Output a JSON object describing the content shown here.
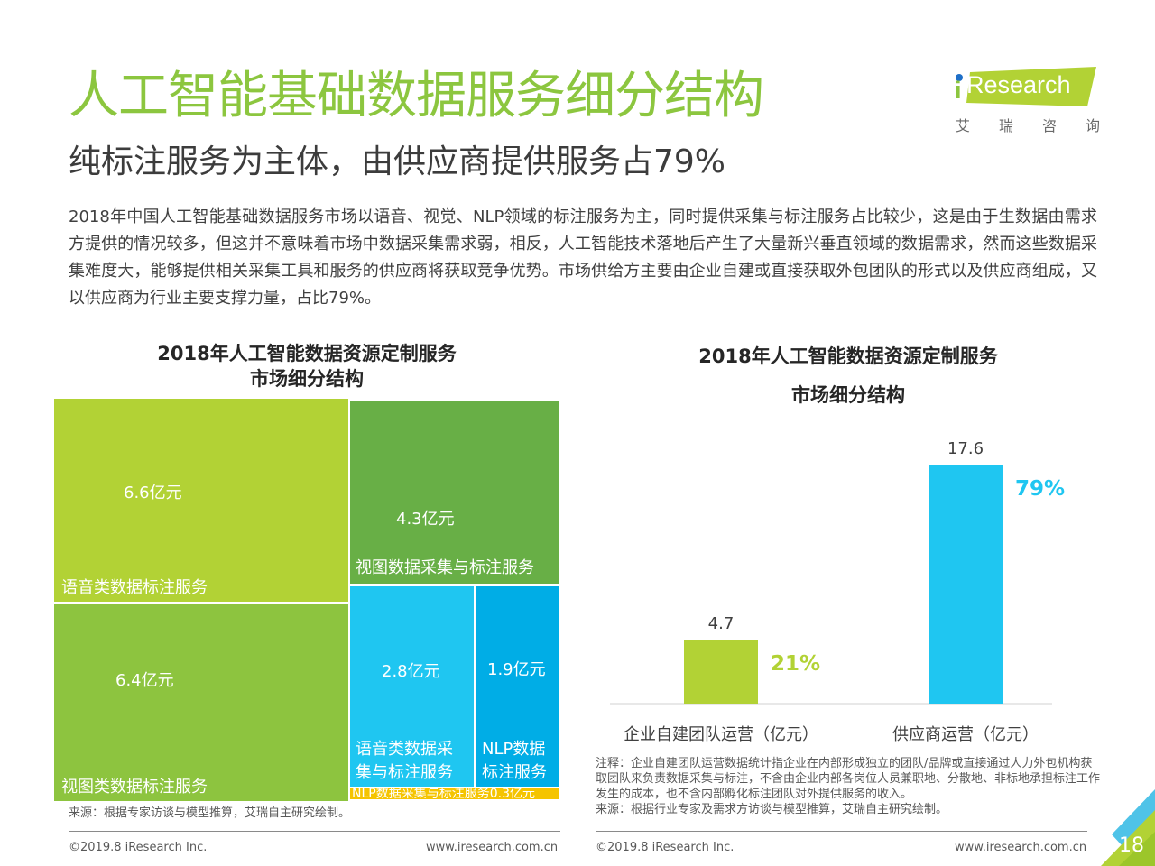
{
  "header": {
    "title": "人工智能基础数据服务细分结构",
    "subtitle": "纯标注服务为主体，由供应商提供服务占79%"
  },
  "logo": {
    "brand": "Research",
    "brand_prefix": "i",
    "cn_chars": [
      "艾",
      "瑞",
      "咨",
      "询"
    ]
  },
  "intro": "2018年中国人工智能基础数据服务市场以语音、视觉、NLP领域的标注服务为主，同时提供采集与标注服务占比较少，这是由于生数据由需求方提供的情况较多，但这并不意味着市场中数据采集需求弱，相反，人工智能技术落地后产生了大量新兴垂直领域的数据需求，然而这些数据采集难度大，能够提供相关采集工具和服务的供应商将获取竞争优势。市场供给方主要由企业自建或直接获取外包团队的形式以及供应商组成，又以供应商为行业主要支撑力量，占比79%。",
  "colors": {
    "brand_green": "#8cc63f",
    "lime": "#b2d235",
    "green_dark": "#68af46",
    "green_mid": "#8dc43f",
    "cyan": "#1fc6f1",
    "blue": "#00ade6",
    "yellow": "#f5c400"
  },
  "chart_data": [
    {
      "type": "treemap",
      "title_line1": "2018年人工智能数据资源定制服务",
      "title_line2": "市场细分结构",
      "unit": "亿元",
      "items": [
        {
          "name": "语音类数据标注服务",
          "value": 6.6,
          "value_label": "6.6亿元",
          "color": "#b2d235"
        },
        {
          "name": "视图类数据标注服务",
          "value": 6.4,
          "value_label": "6.4亿元",
          "color": "#8dc43f"
        },
        {
          "name": "视图数据采集与标注服务",
          "value": 4.3,
          "value_label": "4.3亿元",
          "color": "#68af46"
        },
        {
          "name": "语音类数据采集与标注服务",
          "name_lines": [
            "语音类数据采",
            "集与标注服务"
          ],
          "value": 2.8,
          "value_label": "2.8亿元",
          "color": "#1fc6f1"
        },
        {
          "name": "NLP数据标注服务",
          "name_lines": [
            "NLP数据",
            "标注服务"
          ],
          "value": 1.9,
          "value_label": "1.9亿元",
          "color": "#00ade6"
        },
        {
          "name": "NLP数据采集与标注服务",
          "value": 0.3,
          "value_label": "NLP数据采集与标注服务0.3亿元",
          "color": "#f5c400"
        }
      ],
      "source": "来源：根据专家访谈与模型推算，艾瑞自主研究绘制。"
    },
    {
      "type": "bar",
      "title_line1": "2018年人工智能数据资源定制服务",
      "title_line2": "市场细分结构",
      "categories": [
        "企业自建团队运营（亿元）",
        "供应商运营（亿元）"
      ],
      "values": [
        4.7,
        17.6
      ],
      "value_labels": [
        "4.7",
        "17.6"
      ],
      "shares": [
        "21%",
        "79%"
      ],
      "bar_colors": [
        "#b2d235",
        "#1fc6f1"
      ],
      "ylim": [
        0,
        17.6
      ],
      "grid": false,
      "note": "注释：企业自建团队运营数据统计指企业在内部形成独立的团队/品牌或直接通过人力外包机构获取团队来负责数据采集与标注，不含由企业内部各岗位人员兼职地、分散地、非标地承担标注工作发生的成本，也不含内部孵化标注团队对外提供服务的收入。",
      "source": "来源：根据行业专家及需求方访谈与模型推算，艾瑞自主研究绘制。"
    }
  ],
  "footer": {
    "copyright_left": "©2019.8 iResearch Inc.",
    "url_left": "www.iresearch.com.cn",
    "copyright_right": "©2019.8 iResearch Inc.",
    "url_right": "www.iresearch.com.cn",
    "page_number": "18"
  }
}
